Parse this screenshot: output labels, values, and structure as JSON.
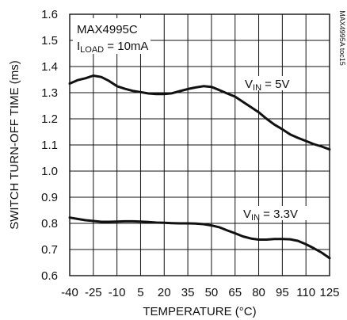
{
  "chart_data": {
    "type": "line",
    "xlabel": "TEMPERATURE (°C)",
    "ylabel": "SWITCH TURN-OFF TIME (ms)",
    "xlim": [
      -40,
      125
    ],
    "ylim": [
      0.6,
      1.6
    ],
    "x_ticks": [
      -40,
      -25,
      -10,
      5,
      20,
      35,
      50,
      65,
      80,
      95,
      110,
      125
    ],
    "y_ticks": [
      0.6,
      0.7,
      0.8,
      0.9,
      1.0,
      1.1,
      1.2,
      1.3,
      1.4,
      1.5,
      1.6
    ],
    "y_tick_labels": [
      "0.6",
      "0.7",
      "0.8",
      "0.9",
      "1.0",
      "1.1",
      "1.2",
      "1.3",
      "1.4",
      "1.5",
      "1.6"
    ],
    "grid": true,
    "annotations": {
      "part": "MAX4995C",
      "load_main": "I",
      "load_sub": "LOAD",
      "load_value": " = 10mA",
      "side_id": "MAX4995A toc15"
    },
    "series": [
      {
        "label_main": "V",
        "label_sub": "IN",
        "label_value": " = 5V",
        "x": [
          -40,
          -35,
          -30,
          -25,
          -20,
          -15,
          -10,
          -5,
          0,
          5,
          10,
          15,
          20,
          25,
          30,
          35,
          40,
          45,
          50,
          55,
          60,
          65,
          70,
          75,
          80,
          85,
          90,
          95,
          100,
          105,
          110,
          115,
          120,
          125
        ],
        "y": [
          1.335,
          1.348,
          1.355,
          1.365,
          1.36,
          1.345,
          1.325,
          1.315,
          1.307,
          1.302,
          1.297,
          1.295,
          1.295,
          1.298,
          1.306,
          1.314,
          1.32,
          1.325,
          1.322,
          1.31,
          1.297,
          1.285,
          1.265,
          1.245,
          1.225,
          1.2,
          1.178,
          1.16,
          1.14,
          1.127,
          1.115,
          1.103,
          1.094,
          1.083
        ]
      },
      {
        "label_main": "V",
        "label_sub": "IN",
        "label_value": " = 3.3V",
        "x": [
          -40,
          -35,
          -30,
          -25,
          -20,
          -15,
          -10,
          -5,
          0,
          5,
          10,
          15,
          20,
          25,
          30,
          35,
          40,
          45,
          50,
          55,
          60,
          65,
          70,
          75,
          80,
          85,
          90,
          95,
          100,
          105,
          110,
          115,
          120,
          125
        ],
        "y": [
          0.822,
          0.817,
          0.812,
          0.809,
          0.806,
          0.806,
          0.807,
          0.808,
          0.808,
          0.807,
          0.805,
          0.803,
          0.802,
          0.801,
          0.8,
          0.8,
          0.799,
          0.797,
          0.792,
          0.785,
          0.773,
          0.762,
          0.75,
          0.742,
          0.738,
          0.738,
          0.74,
          0.74,
          0.739,
          0.733,
          0.72,
          0.705,
          0.688,
          0.667
        ]
      }
    ]
  }
}
